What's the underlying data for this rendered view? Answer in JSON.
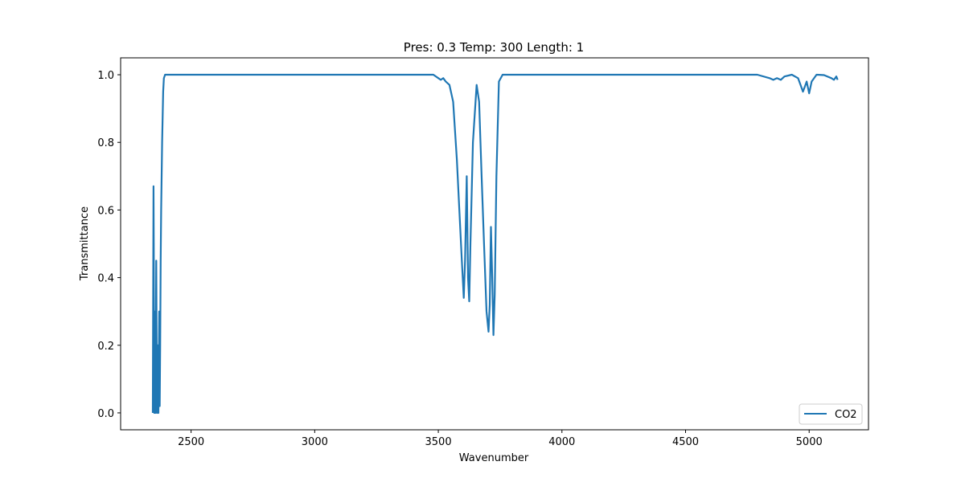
{
  "chart_data": {
    "type": "line",
    "title": "Pres: 0.3 Temp: 300 Length: 1",
    "xlabel": "Wavenumber",
    "ylabel": "Transmittance",
    "xlim": [
      2215,
      5240
    ],
    "ylim": [
      -0.05,
      1.05
    ],
    "xticks": [
      2500,
      3000,
      3500,
      4000,
      4500,
      5000
    ],
    "yticks": [
      0.0,
      0.2,
      0.4,
      0.6,
      0.8,
      1.0
    ],
    "grid": false,
    "legend": {
      "position": "bottom-right",
      "entries": [
        "CO2"
      ]
    },
    "series": [
      {
        "name": "CO2",
        "color": "#1f77b4",
        "x": [
          2345,
          2348,
          2349,
          2351,
          2353,
          2356,
          2359,
          2362,
          2365,
          2368,
          2371,
          2373,
          2375,
          2377,
          2379,
          2381,
          2383,
          2385,
          2387,
          2390,
          2395,
          3480,
          3500,
          3510,
          3520,
          3530,
          3545,
          3560,
          3575,
          3585,
          3595,
          3603,
          3608,
          3615,
          3620,
          3625,
          3630,
          3640,
          3655,
          3665,
          3675,
          3685,
          3695,
          3703,
          3708,
          3713,
          3718,
          3723,
          3728,
          3735,
          3745,
          3760,
          4790,
          4840,
          4855,
          4870,
          4885,
          4900,
          4930,
          4955,
          4965,
          4975,
          4985,
          4990,
          5000,
          5010,
          5030,
          5060,
          5090,
          5100,
          5110,
          5115
        ],
        "y": [
          0.0,
          0.67,
          0.5,
          0.0,
          0.3,
          0.0,
          0.45,
          0.0,
          0.2,
          0.0,
          0.3,
          0.02,
          0.2,
          0.45,
          0.6,
          0.7,
          0.8,
          0.88,
          0.95,
          0.99,
          1.0,
          1.0,
          0.99,
          0.985,
          0.99,
          0.98,
          0.97,
          0.92,
          0.75,
          0.6,
          0.45,
          0.34,
          0.45,
          0.7,
          0.4,
          0.33,
          0.5,
          0.8,
          0.97,
          0.92,
          0.7,
          0.5,
          0.3,
          0.24,
          0.32,
          0.55,
          0.4,
          0.23,
          0.35,
          0.7,
          0.98,
          1.0,
          1.0,
          0.99,
          0.985,
          0.99,
          0.985,
          0.995,
          1.0,
          0.99,
          0.97,
          0.95,
          0.97,
          0.98,
          0.945,
          0.98,
          1.0,
          0.999,
          0.99,
          0.985,
          0.995,
          0.985
        ]
      }
    ]
  }
}
